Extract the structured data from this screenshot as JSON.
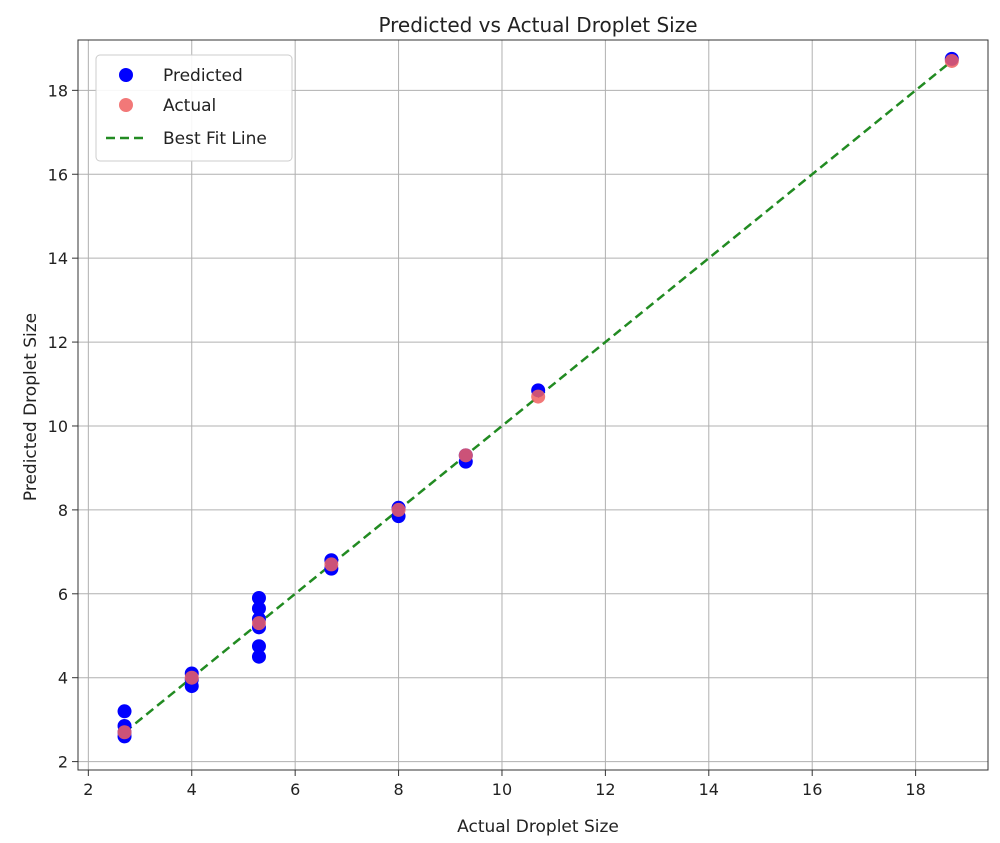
{
  "chart_data": {
    "type": "scatter",
    "title": "Predicted vs Actual Droplet Size",
    "xlabel": "Actual Droplet Size",
    "ylabel": "Predicted Droplet Size",
    "xlim": [
      1.8,
      19.4
    ],
    "ylim": [
      1.8,
      19.2
    ],
    "xticks": [
      2,
      4,
      6,
      8,
      10,
      12,
      14,
      16,
      18
    ],
    "yticks": [
      2,
      4,
      6,
      8,
      10,
      12,
      14,
      16,
      18
    ],
    "grid": true,
    "legend_position": "top-left",
    "series": [
      {
        "name": "Predicted",
        "kind": "scatter",
        "color": "#0000ff",
        "points": [
          [
            2.7,
            3.2
          ],
          [
            2.7,
            2.85
          ],
          [
            2.7,
            2.7
          ],
          [
            2.7,
            2.6
          ],
          [
            4.0,
            4.1
          ],
          [
            4.0,
            3.95
          ],
          [
            4.0,
            3.8
          ],
          [
            5.3,
            5.9
          ],
          [
            5.3,
            5.65
          ],
          [
            5.3,
            5.4
          ],
          [
            5.3,
            5.2
          ],
          [
            5.3,
            4.75
          ],
          [
            5.3,
            4.5
          ],
          [
            6.7,
            6.8
          ],
          [
            6.7,
            6.6
          ],
          [
            8.0,
            8.05
          ],
          [
            8.0,
            7.85
          ],
          [
            9.3,
            9.3
          ],
          [
            9.3,
            9.15
          ],
          [
            10.7,
            10.85
          ],
          [
            18.7,
            18.75
          ]
        ]
      },
      {
        "name": "Actual",
        "kind": "scatter",
        "color": "#f06060",
        "points": [
          [
            2.7,
            2.7
          ],
          [
            4.0,
            4.0
          ],
          [
            5.3,
            5.3
          ],
          [
            6.7,
            6.7
          ],
          [
            8.0,
            8.0
          ],
          [
            9.3,
            9.3
          ],
          [
            10.7,
            10.7
          ],
          [
            18.7,
            18.7
          ]
        ]
      },
      {
        "name": "Best Fit Line",
        "kind": "line",
        "style": "dashed",
        "color": "#228b22",
        "points": [
          [
            2.7,
            2.7
          ],
          [
            18.7,
            18.7
          ]
        ]
      }
    ]
  }
}
